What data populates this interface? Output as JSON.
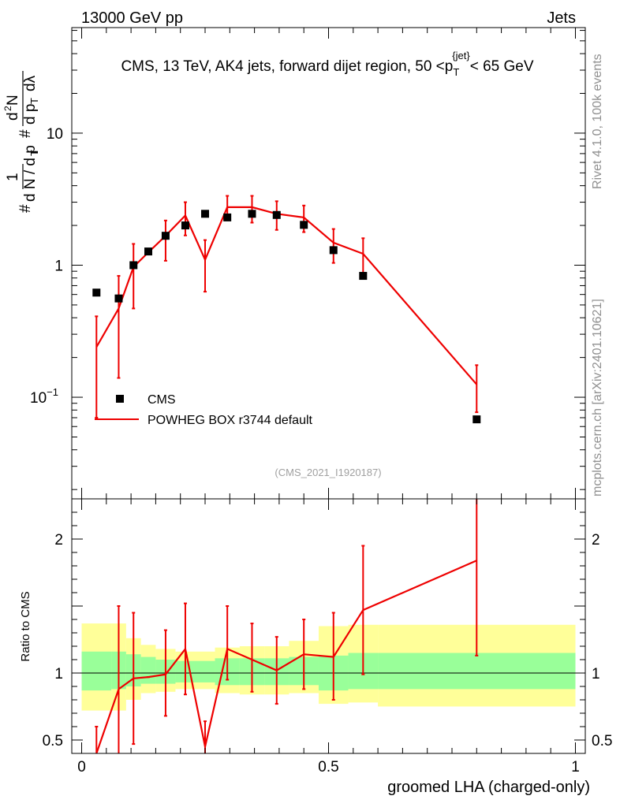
{
  "header": {
    "energy_label": "13000 GeV pp",
    "category_label": "Jets"
  },
  "side_labels": {
    "rivet": "Rivet 4.1.0,  100k events",
    "mcplots": "mcplots.cern.ch [arXiv:2401.10621]"
  },
  "colors": {
    "mc_line": "#ee0000",
    "data_marker": "#000000",
    "band_inner": "#99ff99",
    "band_outer": "#ffff99"
  },
  "chart_data": [
    {
      "type": "scatter",
      "id": "main",
      "title": "CMS, 13 TeV, AK4 jets, forward dijet region, 50 <p_T^{jet}< 65 GeV",
      "title_parts": {
        "prefix": "CMS, 13 TeV, AK4 jets, forward dijet region, 50 <p",
        "sub": "T",
        "sup": "{jet}",
        "suffix": "< 65 GeV"
      },
      "analysis_label": "(CMS_2021_I1920187)",
      "xlabel": "groomed LHA (charged-only)",
      "ylabel": "1/dN/dp_T  d²N/dp_T dλ",
      "yscale": "log",
      "xlim": [
        -0.02,
        1.02
      ],
      "ylim": [
        0.017,
        63
      ],
      "yticks": [
        {
          "value": 0.1,
          "base": "10",
          "exp": "−1"
        },
        {
          "value": 1,
          "base": "1",
          "exp": ""
        },
        {
          "value": 10,
          "base": "10",
          "exp": ""
        }
      ],
      "legend": {
        "position": "bottom-left",
        "data_label": "CMS",
        "mc_label": "POWHEG BOX r3744 default"
      },
      "data_series": {
        "name": "CMS",
        "x": [
          0.03,
          0.075,
          0.105,
          0.135,
          0.17,
          0.21,
          0.25,
          0.295,
          0.345,
          0.395,
          0.45,
          0.51,
          0.57,
          0.8
        ],
        "y": [
          0.62,
          0.56,
          1.0,
          1.27,
          1.67,
          2.0,
          2.45,
          2.3,
          2.45,
          2.4,
          2.02,
          1.3,
          0.83,
          0.068
        ]
      },
      "mc_series": {
        "name": "POWHEG BOX r3744 default",
        "x": [
          0.03,
          0.075,
          0.105,
          0.135,
          0.17,
          0.21,
          0.25,
          0.295,
          0.345,
          0.395,
          0.45,
          0.51,
          0.57,
          0.8
        ],
        "y": [
          0.24,
          0.47,
          0.97,
          1.25,
          1.67,
          2.38,
          1.1,
          2.75,
          2.75,
          2.45,
          2.3,
          1.48,
          1.22,
          0.125
        ],
        "err_low": [
          0.07,
          0.14,
          0.47,
          1.25,
          1.08,
          1.68,
          0.63,
          2.2,
          2.1,
          1.85,
          1.78,
          1.04,
          0.82,
          0.077
        ],
        "err_high": [
          0.41,
          0.83,
          1.45,
          1.25,
          2.18,
          3.0,
          1.55,
          3.35,
          3.35,
          3.05,
          2.83,
          1.88,
          1.6,
          0.175
        ]
      }
    },
    {
      "type": "line",
      "id": "ratio",
      "ylabel": "Ratio to CMS",
      "xlabel": "groomed LHA (charged-only)",
      "xlim": [
        -0.02,
        1.02
      ],
      "ylim": [
        0.4,
        2.3
      ],
      "yticks": [
        {
          "value": 0.5,
          "label": "0.5"
        },
        {
          "value": 1,
          "label": "1"
        },
        {
          "value": 2,
          "label": "2"
        }
      ],
      "xticks": [
        {
          "value": 0,
          "label": "0"
        },
        {
          "value": 0.5,
          "label": "0.5"
        },
        {
          "value": 1,
          "label": "1"
        }
      ],
      "reference_line": 1,
      "bands": {
        "edges": [
          0,
          0.06,
          0.09,
          0.12,
          0.15,
          0.19,
          0.23,
          0.27,
          0.32,
          0.37,
          0.42,
          0.48,
          0.54,
          0.6,
          1.0
        ],
        "inner_low": [
          0.87,
          0.88,
          0.9,
          0.92,
          0.92,
          0.93,
          0.93,
          0.91,
          0.91,
          0.91,
          0.91,
          0.87,
          0.88,
          0.88
        ],
        "inner_high": [
          1.16,
          1.16,
          1.14,
          1.12,
          1.1,
          1.09,
          1.09,
          1.11,
          1.11,
          1.11,
          1.12,
          1.13,
          1.15,
          1.15
        ],
        "outer_low": [
          0.72,
          0.72,
          0.8,
          0.85,
          0.86,
          0.88,
          0.88,
          0.85,
          0.84,
          0.84,
          0.85,
          0.77,
          0.78,
          0.75
        ],
        "outer_high": [
          1.37,
          1.37,
          1.26,
          1.21,
          1.18,
          1.16,
          1.16,
          1.19,
          1.2,
          1.2,
          1.24,
          1.35,
          1.36,
          1.36
        ]
      },
      "mc_ratio": {
        "x": [
          0.03,
          0.075,
          0.105,
          0.135,
          0.17,
          0.21,
          0.25,
          0.295,
          0.345,
          0.395,
          0.45,
          0.51,
          0.57,
          0.8
        ],
        "y": [
          0.39,
          0.88,
          0.96,
          0.97,
          0.99,
          1.18,
          0.45,
          1.18,
          1.1,
          1.02,
          1.14,
          1.12,
          1.47,
          1.84
        ],
        "err_low": [
          0.2,
          0.2,
          0.47,
          0.97,
          0.68,
          0.84,
          0.26,
          0.95,
          0.86,
          0.77,
          0.88,
          0.8,
          0.99,
          1.13
        ],
        "err_high": [
          0.6,
          1.5,
          1.45,
          0.97,
          1.32,
          1.52,
          0.64,
          1.5,
          1.37,
          1.27,
          1.4,
          1.45,
          1.95,
          2.55
        ]
      }
    }
  ]
}
